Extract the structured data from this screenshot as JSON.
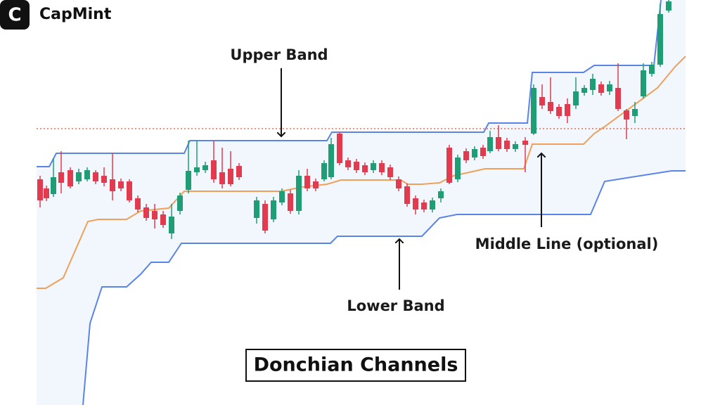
{
  "logo": {
    "icon": "C",
    "text": "CapMint"
  },
  "annotations": {
    "upper_band": "Upper Band",
    "lower_band": "Lower Band",
    "middle_line": "Middle Line (optional)"
  },
  "title": "Donchian Channels"
}
